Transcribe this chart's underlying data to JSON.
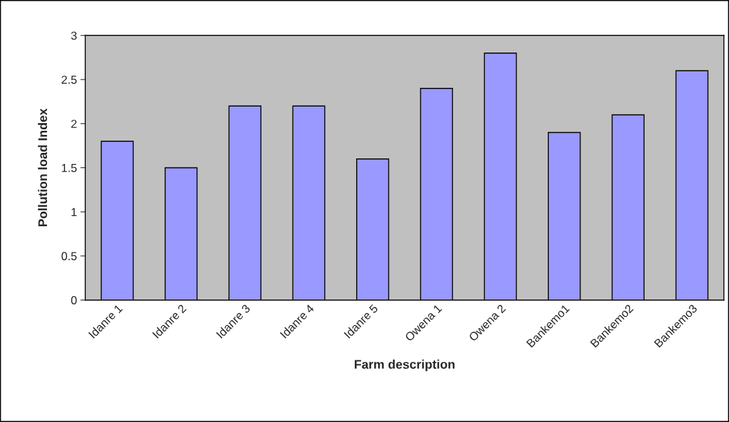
{
  "chart_data": {
    "type": "bar",
    "xlabel": "Farm description",
    "ylabel": "Pollution load Index",
    "categories": [
      "Idanre 1",
      "Idanre 2",
      "Idanre 3",
      "Idanre 4",
      "Idanre 5",
      "Owena 1",
      "Owena 2",
      "Bankemo1",
      "Bankemo2",
      "Bankemo3"
    ],
    "values": [
      1.8,
      1.5,
      2.2,
      2.2,
      1.6,
      2.4,
      2.8,
      1.9,
      2.1,
      2.6
    ],
    "color": "#9999ff",
    "ylim": [
      0,
      3
    ],
    "yticks": [
      0,
      0.5,
      1,
      1.5,
      2,
      2.5,
      3
    ],
    "grid": false,
    "legend": false
  }
}
